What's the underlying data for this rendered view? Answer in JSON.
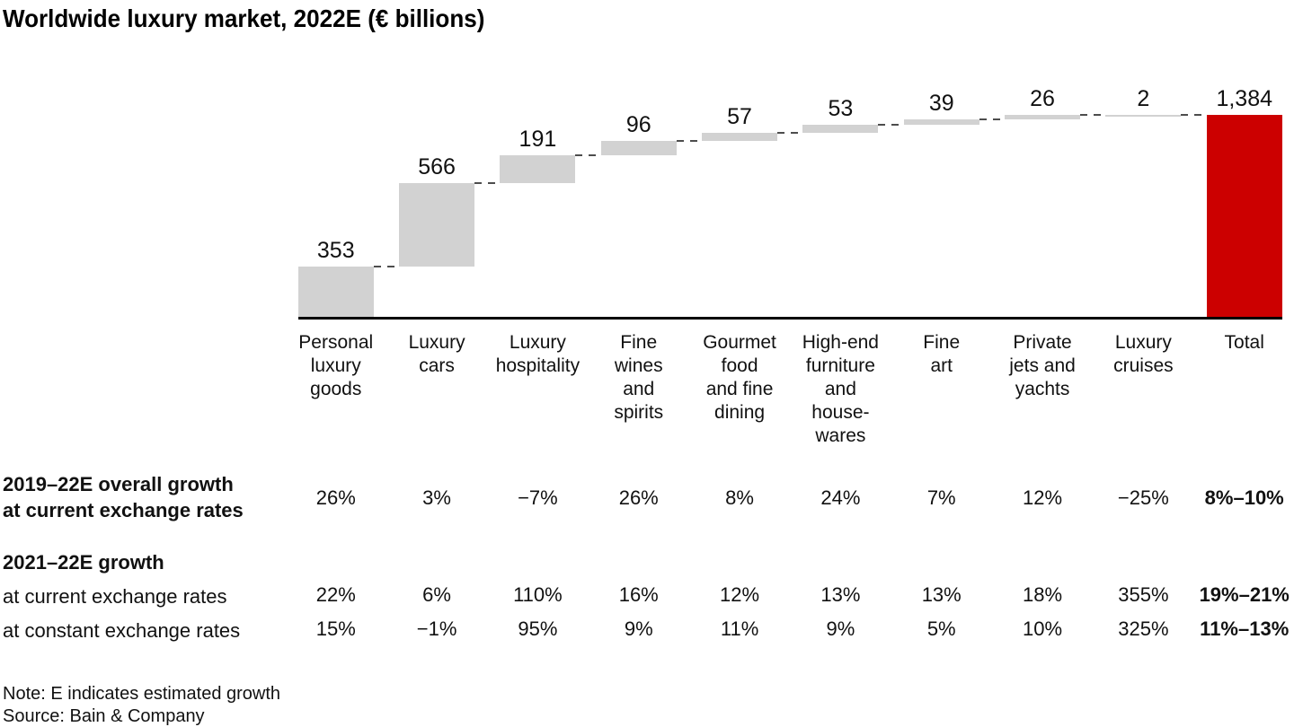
{
  "title": "Worldwide luxury market, 2022E (€ billions)",
  "note": "Note: E indicates estimated growth",
  "source": "Source: Bain & Company",
  "colors": {
    "segment_bar": "#d2d2d2",
    "total_bar": "#cc0000",
    "axis": "#000000",
    "connector": "#4d4d4d",
    "text": "#111111"
  },
  "chart_data": {
    "type": "bar",
    "variant": "waterfall",
    "title": "Worldwide luxury market, 2022E (€ billions)",
    "unit": "€ billions",
    "grid": false,
    "legend": false,
    "ylim": [
      0,
      1384
    ],
    "categories": [
      "Personal luxury goods",
      "Luxury cars",
      "Luxury hospitality",
      "Fine wines and spirits",
      "Gourmet food and fine dining",
      "High-end furniture and housewares",
      "Fine art",
      "Private jets and yachts",
      "Luxury cruises"
    ],
    "category_label_lines": [
      [
        "Personal",
        "luxury",
        "goods"
      ],
      [
        "Luxury",
        "cars"
      ],
      [
        "Luxury",
        "hospitality"
      ],
      [
        "Fine",
        "wines",
        "and",
        "spirits"
      ],
      [
        "Gourmet",
        "food",
        "and fine",
        "dining"
      ],
      [
        "High-end",
        "furniture",
        "and",
        "house-",
        "wares"
      ],
      [
        "Fine",
        "art"
      ],
      [
        "Private",
        "jets and",
        "yachts"
      ],
      [
        "Luxury",
        "cruises"
      ]
    ],
    "values": [
      353,
      566,
      191,
      96,
      57,
      53,
      39,
      26,
      2
    ],
    "value_labels": [
      "353",
      "566",
      "191",
      "96",
      "57",
      "53",
      "39",
      "26",
      "2"
    ],
    "total": {
      "label": "Total",
      "value": 1384,
      "display": "1,384"
    }
  },
  "growth_table": {
    "rows": [
      {
        "type": "data",
        "label_lines": [
          "2019–22E overall growth",
          "at current exchange rates"
        ],
        "label_bold": true,
        "values": [
          "26%",
          "3%",
          "−7%",
          "26%",
          "8%",
          "24%",
          "7%",
          "12%",
          "−25%"
        ],
        "total": "8%–10%"
      },
      {
        "type": "heading",
        "label_lines": [
          "2021–22E growth"
        ],
        "label_bold": true
      },
      {
        "type": "data",
        "label_lines": [
          "at current exchange rates"
        ],
        "label_bold": false,
        "values": [
          "22%",
          "6%",
          "110%",
          "16%",
          "12%",
          "13%",
          "13%",
          "18%",
          "355%"
        ],
        "total": "19%–21%"
      },
      {
        "type": "data",
        "label_lines": [
          "at constant exchange rates"
        ],
        "label_bold": false,
        "values": [
          "15%",
          "−1%",
          "95%",
          "9%",
          "11%",
          "9%",
          "5%",
          "10%",
          "325%"
        ],
        "total": "11%–13%"
      }
    ]
  }
}
